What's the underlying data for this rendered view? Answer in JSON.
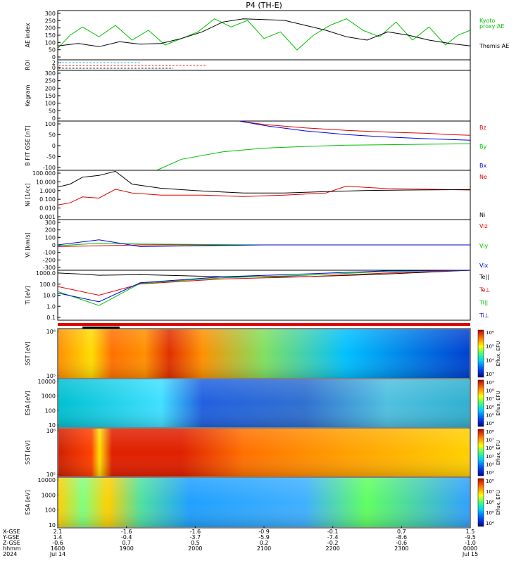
{
  "title": "P4 (TH-E)",
  "colors": {
    "black": "#000000",
    "green": "#00c000",
    "red": "#e00000",
    "blue": "#0000e0",
    "cyan": "#00b0e0"
  },
  "chart_data": [
    {
      "type": "line",
      "panel": "ae",
      "ylabel": "AE index",
      "ylim": [
        0,
        300
      ],
      "yticks": [
        "300",
        "250",
        "200",
        "150",
        "100",
        "50",
        "0"
      ],
      "series": [
        {
          "name": "Kyoto proxy AE",
          "color": "green",
          "x": [
            0,
            0.03,
            0.06,
            0.1,
            0.14,
            0.18,
            0.22,
            0.26,
            0.3,
            0.34,
            0.38,
            0.42,
            0.46,
            0.5,
            0.54,
            0.58,
            0.62,
            0.66,
            0.7,
            0.74,
            0.78,
            0.82,
            0.86,
            0.9,
            0.94,
            0.97,
            1.0
          ],
          "values": [
            70,
            150,
            200,
            140,
            210,
            120,
            180,
            90,
            130,
            170,
            250,
            200,
            240,
            130,
            170,
            60,
            150,
            210,
            250,
            180,
            140,
            230,
            120,
            200,
            90,
            150,
            180
          ]
        },
        {
          "name": "Themis AE",
          "color": "black",
          "x": [
            0,
            0.05,
            0.1,
            0.15,
            0.2,
            0.25,
            0.3,
            0.35,
            0.4,
            0.45,
            0.5,
            0.55,
            0.6,
            0.65,
            0.7,
            0.75,
            0.8,
            0.85,
            0.9,
            0.95,
            1.0
          ],
          "values": [
            85,
            100,
            80,
            110,
            95,
            100,
            130,
            170,
            230,
            250,
            245,
            240,
            210,
            180,
            140,
            120,
            170,
            150,
            120,
            100,
            85
          ]
        }
      ],
      "legend": [
        "Kyoto",
        "proxy AE",
        "Themis AE"
      ]
    },
    {
      "type": "line",
      "panel": "roi",
      "ylabel": "ROI",
      "yticks": [
        "2",
        "0"
      ]
    },
    {
      "type": "line",
      "panel": "kp",
      "ylabel": "Kegram",
      "ylim": [
        0,
        300
      ],
      "yticks": [
        "300",
        "250",
        "200",
        "150",
        "100",
        "50",
        "0"
      ]
    },
    {
      "type": "line",
      "panel": "b",
      "ylabel": "B FIT GSE [nT]",
      "ylim": [
        -100,
        100
      ],
      "yticks": [
        "100",
        "50",
        "0",
        "-50",
        "-100"
      ],
      "series": [
        {
          "name": "Bz",
          "color": "red",
          "x": [
            0.44,
            0.5,
            0.6,
            0.7,
            0.8,
            0.9,
            0.95,
            1.0
          ],
          "values": [
            100,
            86,
            72,
            62,
            55,
            50,
            45,
            42
          ]
        },
        {
          "name": "By",
          "color": "green",
          "x": [
            0.24,
            0.3,
            0.4,
            0.5,
            0.6,
            0.7,
            0.8,
            0.9,
            1.0
          ],
          "values": [
            -100,
            -55,
            -25,
            -10,
            -3,
            2,
            4,
            6,
            8
          ]
        },
        {
          "name": "Bx",
          "color": "blue",
          "x": [
            0.44,
            0.5,
            0.6,
            0.7,
            0.8,
            0.9,
            1.0
          ],
          "values": [
            100,
            82,
            60,
            45,
            35,
            28,
            22
          ]
        }
      ]
    },
    {
      "type": "line",
      "panel": "n",
      "ylabel": "Ni [1/cc]",
      "yscale": "log",
      "ylim": [
        0.001,
        100
      ],
      "yticks": [
        "100.000",
        "10.000",
        "1.000",
        "0.100",
        "0.010",
        "0.001"
      ],
      "series": [
        {
          "name": "Ne",
          "color": "red",
          "x": [
            0,
            0.03,
            0.06,
            0.1,
            0.14,
            0.18,
            0.25,
            0.35,
            0.45,
            0.55,
            0.65,
            0.7,
            0.75,
            0.8,
            0.9,
            1.0
          ],
          "values": [
            0.03,
            0.05,
            0.2,
            0.15,
            1.2,
            0.5,
            0.3,
            0.3,
            0.22,
            0.3,
            0.5,
            2.5,
            1.8,
            1.4,
            1.2,
            1.0
          ]
        },
        {
          "name": "Ni",
          "color": "black",
          "x": [
            0,
            0.03,
            0.06,
            0.1,
            0.14,
            0.18,
            0.25,
            0.35,
            0.45,
            0.55,
            0.65,
            0.75,
            0.85,
            1.0
          ],
          "values": [
            2,
            4,
            20,
            30,
            80,
            4,
            1.5,
            0.8,
            0.5,
            0.5,
            0.7,
            0.9,
            1.0,
            1.1
          ]
        }
      ]
    },
    {
      "type": "line",
      "panel": "v",
      "ylabel": "Vi [km/s]",
      "ylim": [
        -300,
        300
      ],
      "yticks": [
        "300",
        "200",
        "100",
        "0",
        "-100",
        "-200",
        "-300"
      ],
      "series": [
        {
          "name": "Viz",
          "color": "red",
          "x": [
            0,
            0.1,
            0.2,
            0.5,
            1.0
          ],
          "values": [
            -20,
            -10,
            0,
            0,
            0
          ]
        },
        {
          "name": "Viy",
          "color": "green",
          "x": [
            0,
            0.1,
            0.2,
            0.5,
            1.0
          ],
          "values": [
            -10,
            20,
            10,
            0,
            0
          ]
        },
        {
          "name": "Vix",
          "color": "blue",
          "x": [
            0,
            0.1,
            0.2,
            0.5,
            1.0
          ],
          "values": [
            0,
            60,
            -20,
            0,
            0
          ]
        }
      ]
    },
    {
      "type": "line",
      "panel": "t",
      "ylabel": "Ti [eV]",
      "yscale": "log",
      "ylim": [
        0.1,
        1000
      ],
      "yticks": [
        "1000.0",
        "100.0",
        "10.0",
        "1.0",
        "0.1"
      ],
      "series": [
        {
          "name": "Te||",
          "color": "black",
          "x": [
            0,
            0.05,
            0.1,
            0.2,
            0.4,
            0.6,
            0.8,
            1.0
          ],
          "values": [
            600,
            500,
            400,
            450,
            300,
            300,
            500,
            1000
          ]
        },
        {
          "name": "Te⊥",
          "color": "red",
          "x": [
            0,
            0.1,
            0.2,
            0.4,
            0.6,
            0.8,
            1.0
          ],
          "values": [
            50,
            10,
            80,
            200,
            300,
            600,
            1000
          ]
        },
        {
          "name": "Ti||",
          "color": "green",
          "x": [
            0,
            0.1,
            0.2,
            0.4,
            0.6,
            0.8,
            1.0
          ],
          "values": [
            20,
            1.5,
            90,
            250,
            400,
            800,
            1000
          ]
        },
        {
          "name": "Ti⊥",
          "color": "blue",
          "x": [
            0,
            0.1,
            0.2,
            0.4,
            0.6,
            0.8,
            1.0
          ],
          "values": [
            15,
            3,
            100,
            300,
            500,
            900,
            1000
          ]
        }
      ]
    },
    {
      "type": "heatmap",
      "panel": "sst_e",
      "ylabel": "SST [eV]",
      "yticks": [
        "10⁶",
        "10⁵"
      ],
      "colorbar_ticks": [
        "10⁶",
        "10⁵",
        "10⁴",
        "10³"
      ],
      "colorbar_label": "Eflux, EFU"
    },
    {
      "type": "heatmap",
      "panel": "esa_e",
      "ylabel": "ESA [eV]",
      "yticks": [
        "10000",
        "1000",
        "100",
        "10"
      ],
      "colorbar_ticks": [
        "10⁹",
        "10⁸",
        "10⁷",
        "10⁶",
        "10⁵",
        "10⁴"
      ],
      "colorbar_label": "Eflux, EFU"
    },
    {
      "type": "heatmap",
      "panel": "sst_i",
      "ylabel": "SST [eV]",
      "yticks": [
        "10⁶",
        "10⁵"
      ],
      "colorbar_ticks": [
        "10⁸",
        "10⁷",
        "10⁶",
        "10⁵",
        "10⁴",
        "10³"
      ],
      "colorbar_label": "Eflux, EFU"
    },
    {
      "type": "heatmap",
      "panel": "esa_i",
      "ylabel": "ESA [eV]",
      "yticks": [
        "10000",
        "1000",
        "100",
        "10"
      ],
      "colorbar_ticks": [
        "10⁸",
        "10⁷",
        "10⁶",
        "10⁵",
        "10⁴"
      ],
      "colorbar_label": "Eflux, EFU"
    }
  ],
  "xaxis": {
    "row_labels": [
      "X-GSE",
      "Y-GSE",
      "Z-GSE",
      "hhmm",
      "2024"
    ],
    "ticks": [
      {
        "x": [
          "2.1",
          "1.4",
          "-0.6"
        ],
        "time": "1600",
        "date": "Jul 14"
      },
      {
        "x": [
          "-1.6",
          "-0.4",
          "0.7"
        ],
        "time": "1900",
        "date": ""
      },
      {
        "x": [
          "-1.6",
          "-3.7",
          "0.5"
        ],
        "time": "2000",
        "date": ""
      },
      {
        "x": [
          "-0.9",
          "-5.9",
          "0.2"
        ],
        "time": "2100",
        "date": ""
      },
      {
        "x": [
          "-0.1",
          "-7.4",
          "-0.2"
        ],
        "time": "2200",
        "date": ""
      },
      {
        "x": [
          "0.7",
          "-8.6",
          "-0.6"
        ],
        "time": "2300",
        "date": ""
      },
      {
        "x": [
          "1.5",
          "-9.5",
          "-1.0"
        ],
        "time": "0000",
        "date": "Jul 15"
      }
    ]
  }
}
